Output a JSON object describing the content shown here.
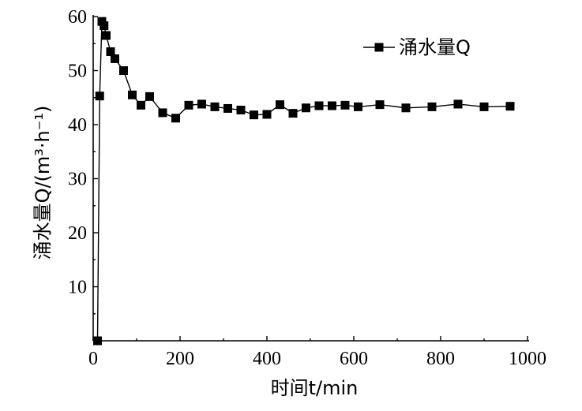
{
  "chart_data": {
    "type": "line",
    "xlabel": "时间t/min",
    "ylabel": "涌水量Q/(m³·h⁻¹)",
    "xlim": [
      0,
      1000
    ],
    "ylim": [
      0,
      60
    ],
    "xticks": [
      "0",
      "200",
      "400",
      "600",
      "800",
      "1000"
    ],
    "yticks": [
      "10",
      "20",
      "30",
      "40",
      "50",
      "60"
    ],
    "grid": false,
    "legend": "top-right",
    "series": [
      {
        "name": "涌水量Q",
        "marker": "square",
        "color": "#000000",
        "x": [
          10,
          15,
          20,
          25,
          30,
          40,
          50,
          70,
          90,
          110,
          130,
          160,
          190,
          220,
          250,
          280,
          310,
          340,
          370,
          400,
          430,
          460,
          490,
          520,
          550,
          580,
          610,
          660,
          720,
          780,
          840,
          900,
          960
        ],
        "y": [
          0,
          45.3,
          59.1,
          58.3,
          56.5,
          53.5,
          52.2,
          50.0,
          45.5,
          43.6,
          45.2,
          42.2,
          41.2,
          43.6,
          43.8,
          43.3,
          43.0,
          42.7,
          41.8,
          41.9,
          43.7,
          42.1,
          43.1,
          43.5,
          43.5,
          43.6,
          43.3,
          43.7,
          43.1,
          43.3,
          43.8,
          43.3,
          43.4
        ]
      }
    ]
  }
}
